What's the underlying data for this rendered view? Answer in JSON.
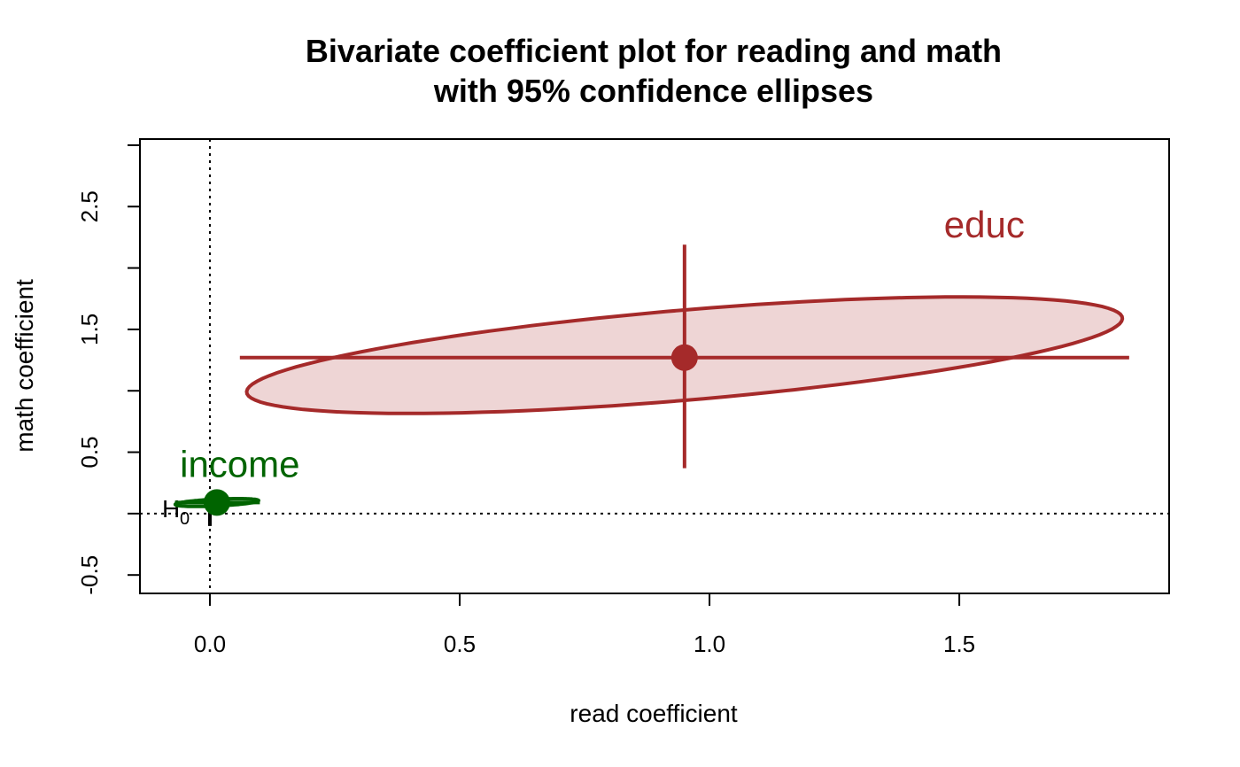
{
  "chart_data": {
    "type": "scatter",
    "title": "Bivariate coefficient plot for reading and math",
    "subtitle": "with 95% confidence ellipses",
    "xlabel": "read coefficient",
    "ylabel": "math coefficient",
    "xlim": [
      -0.14,
      1.92
    ],
    "ylim": [
      -0.65,
      3.05
    ],
    "xticks": [
      0.0,
      0.5,
      1.0,
      1.5
    ],
    "xtick_labels": [
      "0.0",
      "0.5",
      "1.0",
      "1.5"
    ],
    "yticks": [
      -0.5,
      0.0,
      0.5,
      1.0,
      1.5,
      2.0,
      2.5,
      3.0
    ],
    "ytick_labels": [
      "-0.5",
      "",
      "0.5",
      "",
      "1.5",
      "",
      "2.5",
      ""
    ],
    "grid": false,
    "reference_lines": {
      "x": 0,
      "y": 0,
      "style": "dotted"
    },
    "hypothesis_point": {
      "label": "H",
      "subscript": "0",
      "x": 0,
      "y": 0
    },
    "series": [
      {
        "name": "educ",
        "color": "#a52a2a",
        "fill": "#eed5d5",
        "estimate": {
          "x": 0.95,
          "y": 1.27
        },
        "x_interval": [
          0.06,
          1.84
        ],
        "y_interval": [
          0.37,
          2.19
        ],
        "ellipse": {
          "center_x": 0.95,
          "center_y": 1.29,
          "semi_axis_major": 0.935,
          "semi_axis_minor": 0.345,
          "angle_deg": 22
        }
      },
      {
        "name": "income",
        "color": "#006400",
        "fill": "#cfe5cf",
        "estimate": {
          "x": 0.014,
          "y": 0.09
        },
        "x_interval": [
          -0.07,
          0.1
        ],
        "y_interval": [
          0.04,
          0.14
        ],
        "ellipse": {
          "center_x": 0.014,
          "center_y": 0.09,
          "semi_axis_major": 0.085,
          "semi_axis_minor": 0.027,
          "angle_deg": 12
        }
      }
    ]
  }
}
